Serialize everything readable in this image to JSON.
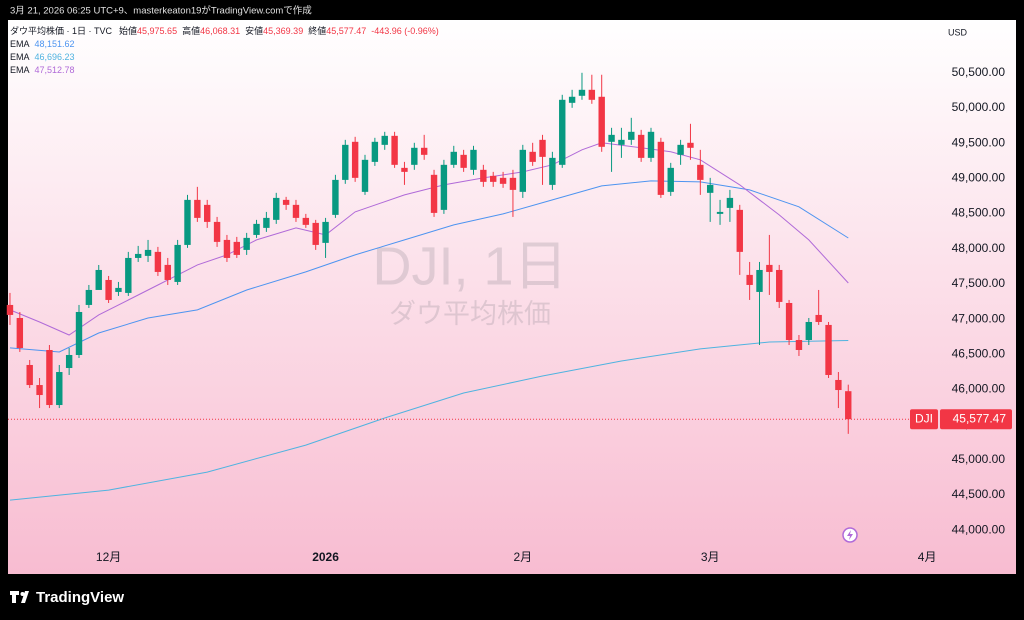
{
  "header": {
    "caption": "3月 21, 2026 06:25 UTC+9、masterkeaton19がTradingView.comで作成"
  },
  "footer": {
    "brand": "TradingView"
  },
  "chart_data": {
    "type": "candlestick",
    "legend": {
      "title": "ダウ平均株価 · 1日 · TVC",
      "items": [
        {
          "label": "始値",
          "value": "45,975.65"
        },
        {
          "label": "高値",
          "value": "46,068.31"
        },
        {
          "label": "安値",
          "value": "45,369.39"
        },
        {
          "label": "終値",
          "value": "45,577.47"
        }
      ],
      "change": "-443.96 (-0.96%)"
    },
    "watermark": {
      "symbol": "DJI, 1日",
      "name": "ダウ平均株価"
    },
    "currency": "USD",
    "up_color": "#089981",
    "down_color": "#f23645",
    "open": [
      47201,
      47016,
      46348,
      46063,
      46561,
      45779,
      46305,
      46490,
      47201,
      47414,
      47556,
      47386,
      47372,
      47869,
      47898,
      47955,
      47770,
      47528,
      48054,
      48694,
      48623,
      48381,
      48125,
      48097,
      47983,
      48196,
      48296,
      48410,
      48694,
      48623,
      48438,
      48367,
      48083,
      48481,
      48978,
      49519,
      48808,
      49234,
      49476,
      49604,
      49149,
      49192,
      49434,
      49050,
      48552,
      49192,
      49334,
      49121,
      49121,
      49035,
      49007,
      49007,
      48808,
      49377,
      49547,
      48907,
      49192,
      50073,
      50173,
      50258,
      50159,
      49519,
      49476,
      49547,
      49618,
      49291,
      49519,
      48808,
      49334,
      49505,
      49192,
      48794,
      48495,
      48580,
      48552,
      47628,
      47386,
      47770,
      47698,
      47229,
      46703,
      46703,
      47059,
      46917,
      46135,
      45975.65
    ],
    "high": [
      47372,
      47101,
      46419,
      46163,
      46632,
      46348,
      46589,
      47201,
      47485,
      47769,
      47613,
      47528,
      47955,
      48040,
      48125,
      48026,
      47869,
      48125,
      48765,
      48879,
      48694,
      48452,
      48196,
      48168,
      48225,
      48410,
      48523,
      48794,
      48737,
      48694,
      48495,
      48410,
      48438,
      49050,
      49547,
      49590,
      49334,
      49576,
      49661,
      49661,
      49234,
      49505,
      49618,
      49121,
      49263,
      49462,
      49405,
      49462,
      49192,
      49092,
      49092,
      49121,
      49476,
      49505,
      49618,
      49377,
      50187,
      50258,
      50500,
      50472,
      50472,
      49718,
      49718,
      49860,
      49689,
      49718,
      49576,
      49220,
      49547,
      49775,
      49405,
      49007,
      48694,
      48836,
      48623,
      47812,
      47812,
      48196,
      47770,
      47272,
      46774,
      47016,
      47414,
      46959,
      46248,
      46068.31
    ],
    "low": [
      46917,
      46533,
      46021,
      45736,
      45736,
      45736,
      46206,
      46447,
      47158,
      47485,
      47229,
      47329,
      47329,
      47812,
      47812,
      47613,
      47485,
      47485,
      48012,
      48381,
      48296,
      48026,
      47812,
      47869,
      47912,
      48154,
      48239,
      48353,
      48552,
      48381,
      48296,
      47983,
      47869,
      48438,
      48922,
      48950,
      48765,
      49177,
      49405,
      49149,
      48907,
      49121,
      49263,
      48452,
      48495,
      49149,
      49092,
      49050,
      48879,
      48879,
      48865,
      48452,
      48722,
      49177,
      48907,
      48836,
      49149,
      50002,
      50116,
      50059,
      49377,
      49092,
      49291,
      49476,
      49234,
      49234,
      48722,
      48751,
      49192,
      49263,
      48765,
      48381,
      48339,
      48381,
      47628,
      47272,
      46632,
      47343,
      47158,
      46632,
      46476,
      46632,
      46917,
      46163,
      45736,
      45369.39
    ],
    "close": [
      47059,
      46589,
      46063,
      45921,
      45779,
      46248,
      46490,
      47101,
      47414,
      47698,
      47272,
      47443,
      47869,
      47926,
      47983,
      47670,
      47556,
      48054,
      48694,
      48438,
      48381,
      48097,
      47869,
      47912,
      48154,
      48353,
      48438,
      48722,
      48623,
      48438,
      48339,
      48054,
      48381,
      48978,
      49476,
      49007,
      49263,
      49519,
      49604,
      49192,
      49092,
      49434,
      49334,
      48509,
      49192,
      49377,
      49149,
      49405,
      48950,
      48950,
      48922,
      48836,
      49405,
      49234,
      49305,
      49291,
      50116,
      50159,
      50258,
      50116,
      49448,
      49618,
      49547,
      49661,
      49291,
      49661,
      48765,
      49149,
      49476,
      49434,
      48978,
      48907,
      48523,
      48722,
      47955,
      47485,
      47698,
      47670,
      47244,
      46703,
      46561,
      46959,
      46959,
      46206,
      45992,
      45577.47
    ],
    "series": [
      {
        "name": "EMA",
        "value_label": "48,151.62",
        "color": "#4d94f0",
        "x": [
          0,
          5,
          9,
          14,
          19,
          24,
          30,
          35,
          40,
          45,
          50,
          55,
          60,
          65,
          70,
          75,
          80,
          85
        ],
        "values": [
          46590,
          46533,
          46803,
          47016,
          47130,
          47414,
          47670,
          47912,
          48125,
          48339,
          48495,
          48694,
          48893,
          48964,
          48950,
          48836,
          48595,
          48151.62
        ]
      },
      {
        "name": "EMA",
        "value_label": "46,696.23",
        "color": "#4fb3e0",
        "x": [
          0,
          10,
          20,
          30,
          38,
          46,
          54,
          62,
          70,
          77,
          85
        ],
        "values": [
          44428,
          44570,
          44826,
          45210,
          45594,
          45950,
          46191,
          46405,
          46576,
          46675,
          46696.23
        ]
      },
      {
        "name": "EMA",
        "value_label": "47,512.78",
        "color": "#b06ad8",
        "x": [
          0,
          3,
          6,
          9,
          12,
          15,
          19,
          22,
          25,
          29,
          32,
          35,
          40,
          44,
          48,
          52,
          55,
          58,
          60,
          64,
          67,
          70,
          74,
          78,
          81,
          85
        ],
        "values": [
          47130,
          46959,
          46774,
          47059,
          47272,
          47485,
          47770,
          47912,
          48125,
          48296,
          48196,
          48523,
          48765,
          48907,
          49007,
          49092,
          49192,
          49405,
          49505,
          49434,
          49377,
          49263,
          48907,
          48481,
          48125,
          47512.78
        ]
      }
    ],
    "last_price": {
      "label": "DJI",
      "value": 45577.47,
      "value_label": "45,577.47"
    },
    "xlim": [
      -0.2,
      94.1
    ],
    "xticks": [
      {
        "value": 10,
        "label": "12月"
      },
      {
        "value": 32,
        "label": "2026"
      },
      {
        "value": 52,
        "label": "2月"
      },
      {
        "value": 71,
        "label": "3月"
      },
      {
        "value": 93,
        "label": "4月"
      }
    ],
    "ylim": [
      43790,
      51250
    ],
    "yticks": [
      {
        "value": 44000,
        "label": "44,000.00"
      },
      {
        "value": 44500,
        "label": "44,500.00"
      },
      {
        "value": 45000,
        "label": "45,000.00"
      },
      {
        "value": 45500,
        "label": "45,500.00"
      },
      {
        "value": 46000,
        "label": "46,000.00"
      },
      {
        "value": 46500,
        "label": "46,500.00"
      },
      {
        "value": 47000,
        "label": "47,000.00"
      },
      {
        "value": 47500,
        "label": "47,500.00"
      },
      {
        "value": 48000,
        "label": "48,000.00"
      },
      {
        "value": 48500,
        "label": "48,500.00"
      },
      {
        "value": 49000,
        "label": "49,000.00"
      },
      {
        "value": 49500,
        "label": "49,500.00"
      },
      {
        "value": 50000,
        "label": "50,000.00"
      },
      {
        "value": 50500,
        "label": "50,500.00"
      }
    ],
    "grid": false
  }
}
